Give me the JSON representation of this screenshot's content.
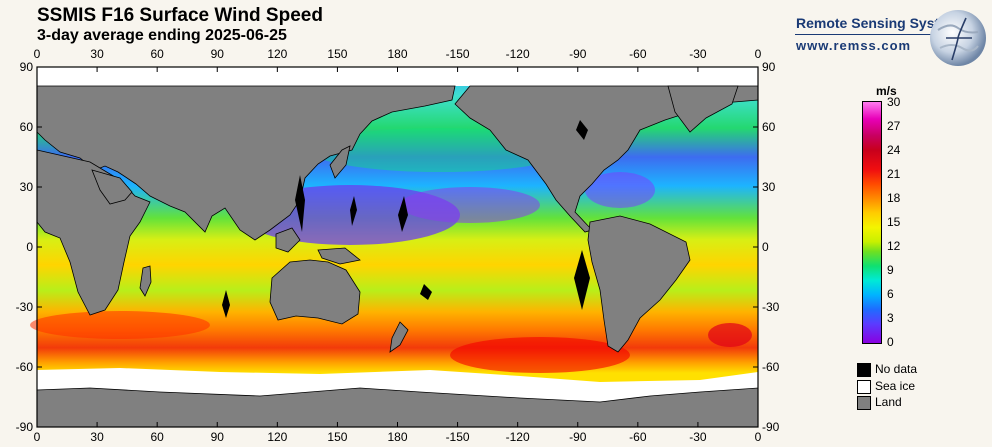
{
  "header": {
    "title": "SSMIS F16 Surface Wind Speed",
    "subtitle": "3-day average ending 2025-06-25"
  },
  "branding": {
    "name": "Remote Sensing Systems",
    "url": "www.remss.com"
  },
  "map": {
    "longitude_labels": [
      "0",
      "30",
      "60",
      "90",
      "120",
      "150",
      "180",
      "-150",
      "-120",
      "-90",
      "-60",
      "-30",
      "0"
    ],
    "latitude_labels": [
      "90",
      "60",
      "30",
      "0",
      "-30",
      "-60",
      "-90"
    ],
    "colors": {
      "land": "#808080",
      "sea_ice": "#ffffff",
      "no_data": "#000000"
    }
  },
  "colorbar": {
    "unit": "m/s",
    "ticks": [
      "30",
      "27",
      "24",
      "21",
      "18",
      "15",
      "12",
      "9",
      "6",
      "3",
      "0"
    ],
    "range": [
      0,
      30
    ]
  },
  "legend": {
    "items": [
      {
        "label": "No data",
        "color": "#000000"
      },
      {
        "label": "Sea ice",
        "color": "#ffffff"
      },
      {
        "label": "Land",
        "color": "#808080"
      }
    ]
  }
}
